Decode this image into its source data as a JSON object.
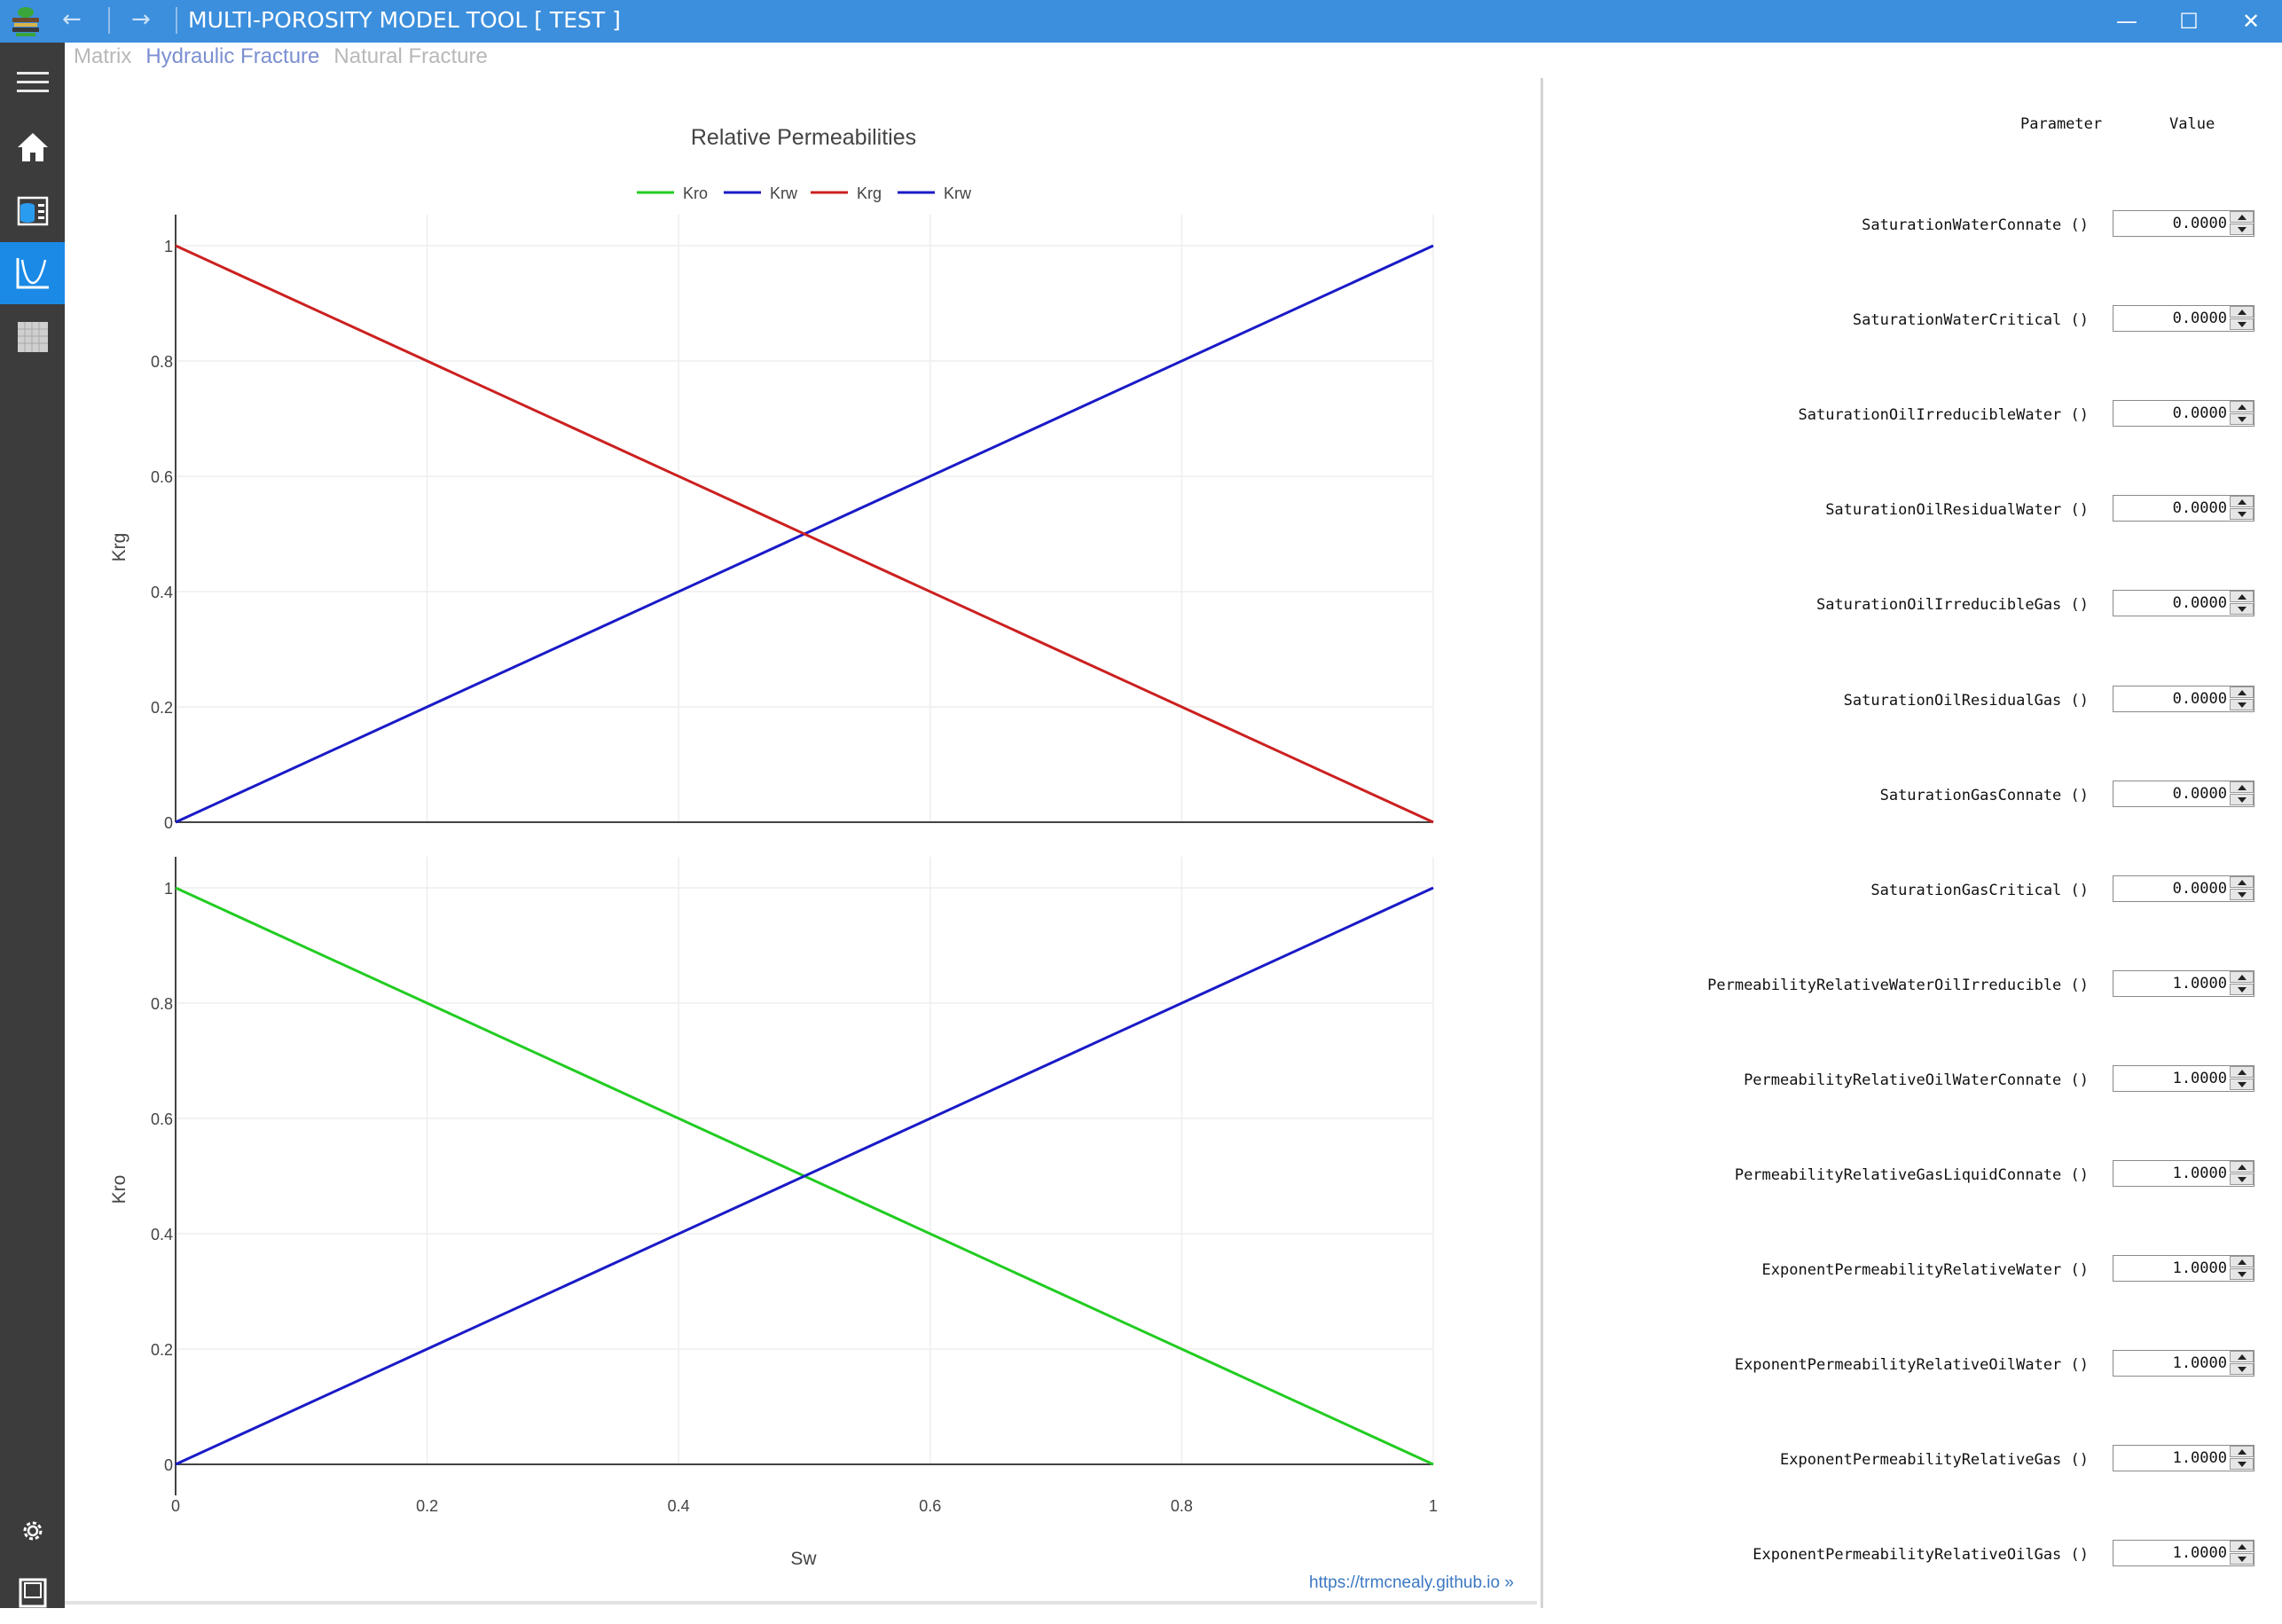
{
  "window": {
    "title": "MULTI-POROSITY MODEL TOOL [ TEST ]",
    "back_glyph": "←",
    "forward_glyph": "→",
    "minimize_glyph": "—",
    "maximize_glyph": "☐",
    "close_glyph": "✕"
  },
  "sidebar": {
    "items": [
      {
        "name": "hamburger-menu-icon",
        "active": false
      },
      {
        "name": "home-icon",
        "active": false
      },
      {
        "name": "database-icon",
        "active": false
      },
      {
        "name": "chart-curve-icon",
        "active": true
      },
      {
        "name": "grid-table-icon",
        "active": false
      },
      {
        "name": "gear-icon",
        "active": false
      },
      {
        "name": "notebook-icon",
        "active": false
      }
    ],
    "active_color": "#1a8ae6"
  },
  "tabs": [
    {
      "label": "Matrix",
      "active": false
    },
    {
      "label": "Hydraulic Fracture",
      "active": true
    },
    {
      "label": "Natural Fracture",
      "active": false
    }
  ],
  "chart_data": {
    "type": "line",
    "title": "Relative Permeabilities",
    "xlabel": "Sw",
    "xlim": [
      0,
      1
    ],
    "xticks": [
      "0",
      "0.2",
      "0.4",
      "0.6",
      "0.8",
      "1"
    ],
    "legend_placement": "top-center",
    "grid": true,
    "subplots": [
      {
        "ylabel": "Krg",
        "ylim": [
          0,
          1
        ],
        "yticks": [
          "0",
          "0.2",
          "0.4",
          "0.6",
          "0.8",
          "1"
        ],
        "series": [
          {
            "name": "Krw",
            "color": "#1a1ac8",
            "x": [
              0,
              1
            ],
            "y": [
              0,
              1
            ]
          },
          {
            "name": "Krg",
            "color": "#cc2020",
            "x": [
              0,
              1
            ],
            "y": [
              1,
              0
            ]
          }
        ]
      },
      {
        "ylabel": "Kro",
        "ylim": [
          0,
          1
        ],
        "yticks": [
          "0",
          "0.2",
          "0.4",
          "0.6",
          "0.8",
          "1"
        ],
        "series": [
          {
            "name": "Kro",
            "color": "#22cc22",
            "x": [
              0,
              1
            ],
            "y": [
              1,
              0
            ]
          },
          {
            "name": "Krw",
            "color": "#1a1ac8",
            "x": [
              0,
              1
            ],
            "y": [
              0,
              1
            ]
          }
        ]
      }
    ],
    "legend": [
      {
        "name": "Kro",
        "color": "#22cc22"
      },
      {
        "name": "Krw",
        "color": "#1a1ac8"
      },
      {
        "name": "Krg",
        "color": "#cc2020"
      },
      {
        "name": "Krw",
        "color": "#1a1ac8"
      }
    ]
  },
  "params": {
    "header_parameter": "Parameter",
    "header_value": "Value",
    "rows": [
      {
        "name": "SaturationWaterConnate ()",
        "value": "0.0000"
      },
      {
        "name": "SaturationWaterCritical ()",
        "value": "0.0000"
      },
      {
        "name": "SaturationOilIrreducibleWater ()",
        "value": "0.0000"
      },
      {
        "name": "SaturationOilResidualWater ()",
        "value": "0.0000"
      },
      {
        "name": "SaturationOilIrreducibleGas ()",
        "value": "0.0000"
      },
      {
        "name": "SaturationOilResidualGas ()",
        "value": "0.0000"
      },
      {
        "name": "SaturationGasConnate ()",
        "value": "0.0000"
      },
      {
        "name": "SaturationGasCritical ()",
        "value": "0.0000"
      },
      {
        "name": "PermeabilityRelativeWaterOilIrreducible ()",
        "value": "1.0000"
      },
      {
        "name": "PermeabilityRelativeOilWaterConnate ()",
        "value": "1.0000"
      },
      {
        "name": "PermeabilityRelativeGasLiquidConnate ()",
        "value": "1.0000"
      },
      {
        "name": "ExponentPermeabilityRelativeWater ()",
        "value": "1.0000"
      },
      {
        "name": "ExponentPermeabilityRelativeOilWater ()",
        "value": "1.0000"
      },
      {
        "name": "ExponentPermeabilityRelativeGas ()",
        "value": "1.0000"
      },
      {
        "name": "ExponentPermeabilityRelativeOilGas ()",
        "value": "1.0000"
      }
    ]
  },
  "footer": {
    "link_text": "https://trmcnealy.github.io »"
  }
}
